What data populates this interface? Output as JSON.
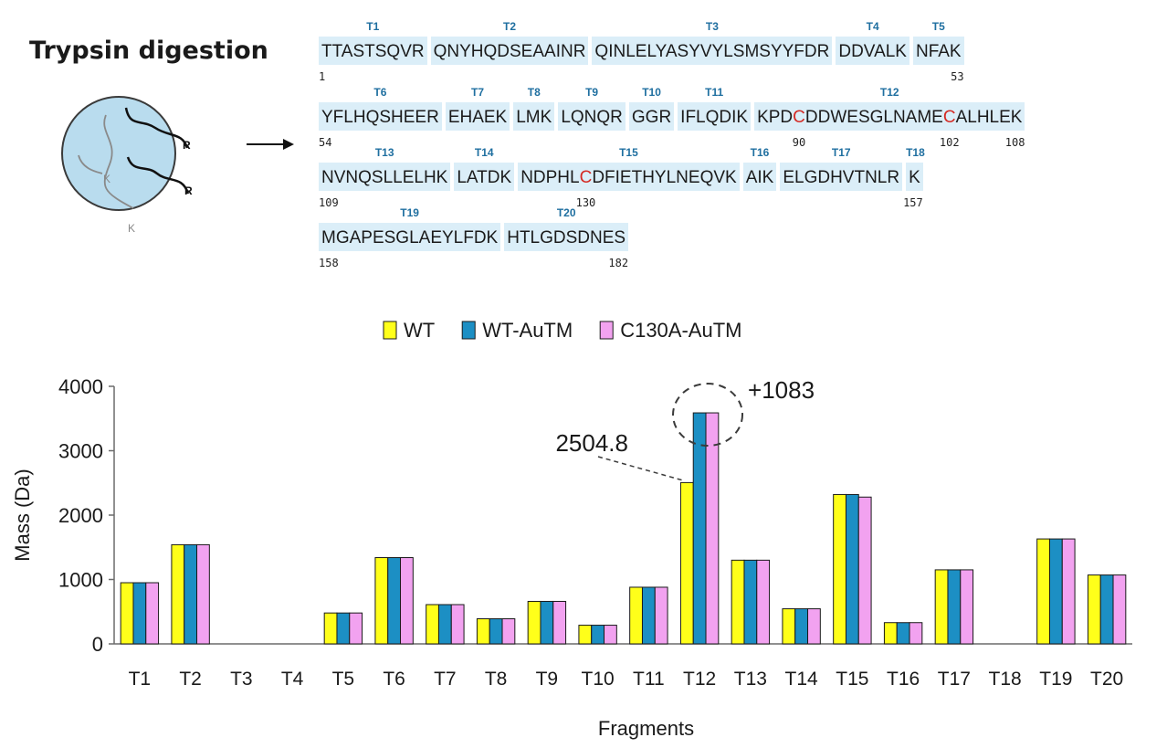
{
  "diagram": {
    "title": "Trypsin digestion",
    "labels": [
      "R",
      "R",
      "K",
      "K"
    ]
  },
  "sequence": {
    "rows": [
      {
        "fragments": [
          {
            "name": "T1",
            "seq": "TTASTSQVR"
          },
          {
            "name": "T2",
            "seq": "QNYHQDSEAAINR"
          },
          {
            "name": "T3",
            "seq": "QINLELYASYVYLSMSYYFDR"
          },
          {
            "name": "T4",
            "seq": "DDVALK"
          },
          {
            "name": "T5",
            "seq": "NFAK"
          }
        ],
        "positions": [
          {
            "text": "1",
            "at": "start"
          },
          {
            "text": "53",
            "at": "end"
          }
        ]
      },
      {
        "fragments": [
          {
            "name": "T6",
            "seq": "YFLHQSHEER"
          },
          {
            "name": "T7",
            "seq": "EHAEK"
          },
          {
            "name": "T8",
            "seq": "LMK"
          },
          {
            "name": "T9",
            "seq": "LQNQR"
          },
          {
            "name": "T10",
            "seq": "GGR"
          },
          {
            "name": "T11",
            "seq": "IFLQDIK"
          },
          {
            "name": "T12",
            "seq": "KPDCDDWESGLNAMECALHLEK",
            "cys": [
              3,
              15
            ]
          }
        ],
        "positions": [
          {
            "text": "54",
            "at": "start"
          },
          {
            "text": "90",
            "at": "cys0"
          },
          {
            "text": "102",
            "at": "cys1"
          },
          {
            "text": "108",
            "at": "end"
          }
        ]
      },
      {
        "fragments": [
          {
            "name": "T13",
            "seq": "NVNQSLLELHK"
          },
          {
            "name": "T14",
            "seq": "LATDK"
          },
          {
            "name": "T15",
            "seq": "NDPHLCDFIETHYLNEQVK",
            "cys": [
              5
            ]
          },
          {
            "name": "T16",
            "seq": "AIK"
          },
          {
            "name": "T17",
            "seq": "ELGDHVTNLR"
          },
          {
            "name": "T18",
            "seq": "K"
          }
        ],
        "positions": [
          {
            "text": "109",
            "at": "start"
          },
          {
            "text": "130",
            "at": "cys0"
          },
          {
            "text": "157",
            "at": "end"
          }
        ]
      },
      {
        "fragments": [
          {
            "name": "T19",
            "seq": "MGAPESGLAEYLFDK"
          },
          {
            "name": "T20",
            "seq": "HTLGDSDNES"
          }
        ],
        "positions": [
          {
            "text": "158",
            "at": "start"
          },
          {
            "text": "182",
            "at": "end"
          }
        ]
      }
    ]
  },
  "chart_data": {
    "type": "bar",
    "xlabel": "Fragments",
    "ylabel": "Mass (Da)",
    "ylim": [
      0,
      4000
    ],
    "yticks": [
      0,
      1000,
      2000,
      3000,
      4000
    ],
    "grid": false,
    "legend_position": "top-center",
    "categories": [
      "T1",
      "T2",
      "T3",
      "T4",
      "T5",
      "T6",
      "T7",
      "T8",
      "T9",
      "T10",
      "T11",
      "T12",
      "T13",
      "T14",
      "T15",
      "T16",
      "T17",
      "T18",
      "T19",
      "T20"
    ],
    "series": [
      {
        "name": "WT",
        "color": "#ffff1a",
        "values": [
          950,
          1540,
          0,
          0,
          480,
          1340,
          610,
          390,
          660,
          290,
          880,
          2505,
          1300,
          545,
          2320,
          330,
          1150,
          0,
          1630,
          1070
        ]
      },
      {
        "name": "WT-AuTM",
        "color": "#1c8fc4",
        "values": [
          950,
          1540,
          0,
          0,
          480,
          1340,
          610,
          390,
          660,
          290,
          880,
          3588,
          1300,
          545,
          2320,
          330,
          1150,
          0,
          1630,
          1070
        ]
      },
      {
        "name": "C130A-AuTM",
        "color": "#f2a2f0",
        "values": [
          950,
          1540,
          0,
          0,
          480,
          1340,
          610,
          390,
          660,
          290,
          880,
          3588,
          1300,
          545,
          2280,
          330,
          1150,
          0,
          1630,
          1070
        ]
      }
    ],
    "annotations": [
      {
        "text": "2504.8",
        "category": "T12",
        "series": 0
      },
      {
        "text": "+1083",
        "category": "T12",
        "series": 1
      }
    ]
  }
}
